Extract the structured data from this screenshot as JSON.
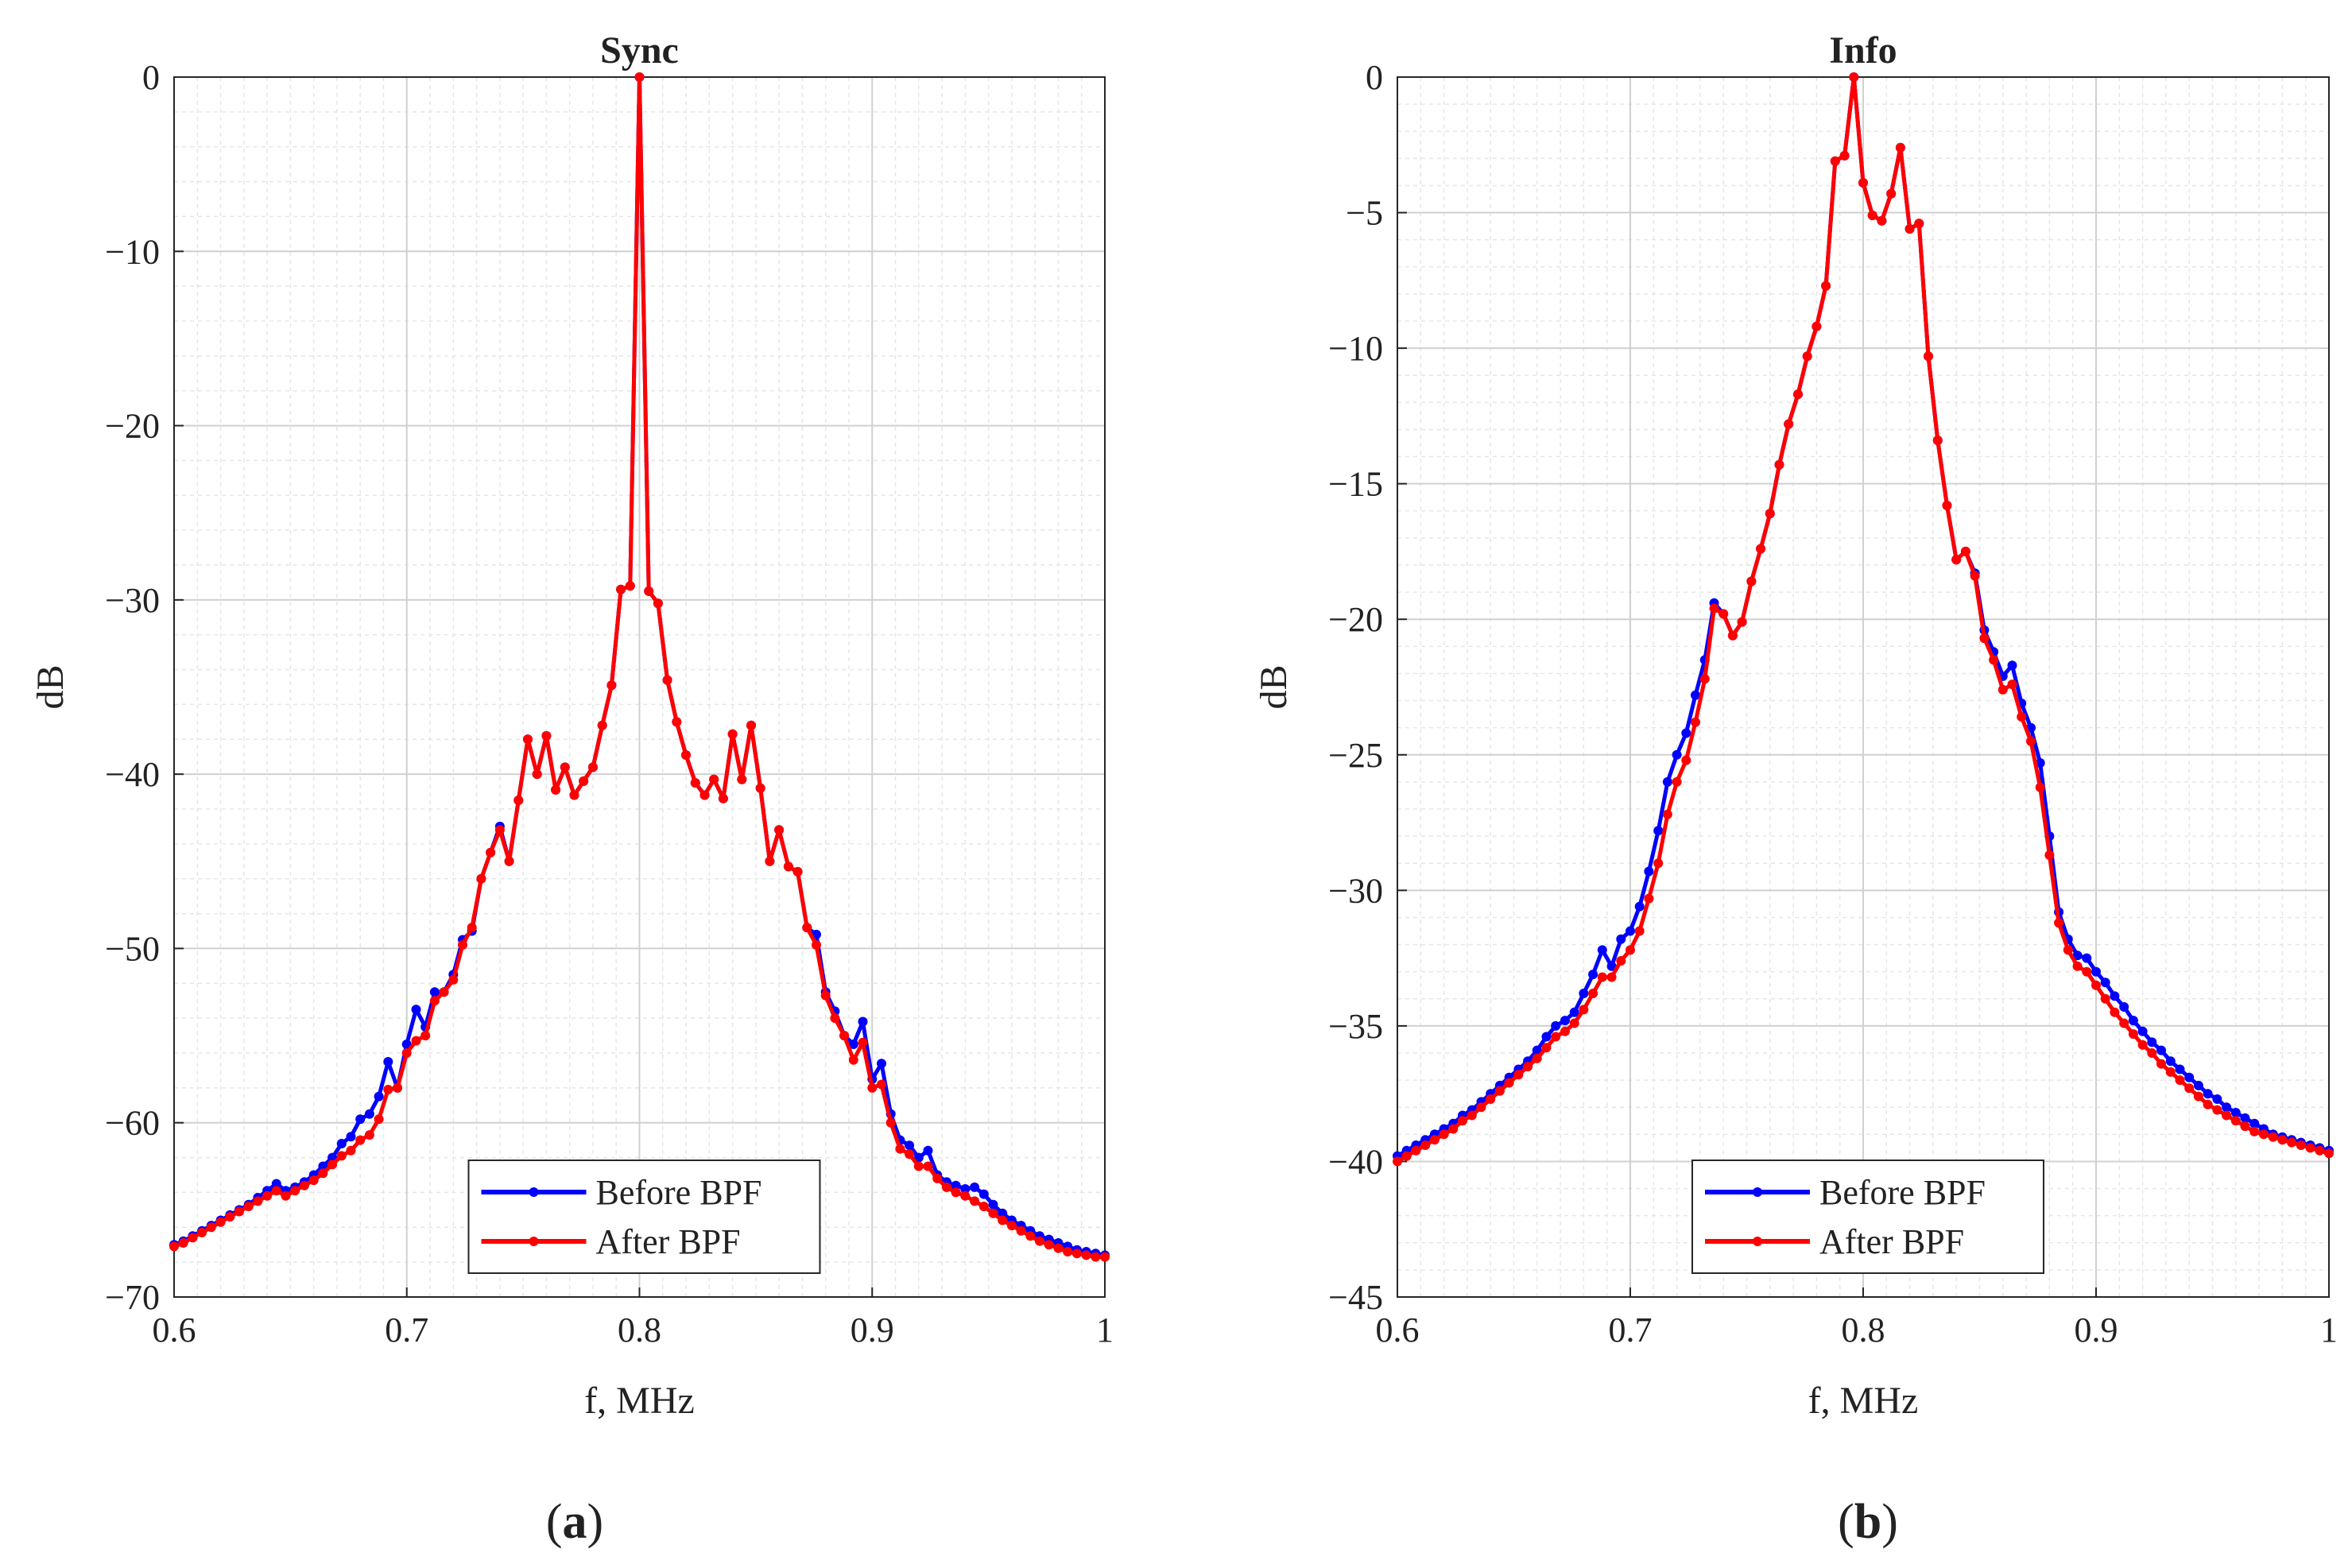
{
  "figure": {
    "panels": [
      {
        "label_open": "(",
        "label_letter": "a",
        "label_close": ")"
      },
      {
        "label_open": "(",
        "label_letter": "b",
        "label_close": ")"
      }
    ]
  },
  "chart_data": [
    {
      "type": "line",
      "title": "Sync",
      "xlabel": "f, MHz",
      "ylabel": "dB",
      "xlim": [
        0.6,
        1.0
      ],
      "ylim": [
        -70,
        0
      ],
      "xticks": [
        0.6,
        0.7,
        0.8,
        0.9,
        1.0
      ],
      "xtick_labels": [
        "0.6",
        "0.7",
        "0.8",
        "0.9",
        "1"
      ],
      "yticks": [
        0,
        -10,
        -20,
        -30,
        -40,
        -50,
        -60,
        -70
      ],
      "ytick_labels": [
        "0",
        "−10",
        "−20",
        "−30",
        "−40",
        "−50",
        "−60",
        "−70"
      ],
      "grid": true,
      "minor_grid": true,
      "legend_position": "bottom-center",
      "series": [
        {
          "name": "Before BPF",
          "color": "#0000ff",
          "x": [
            0.6,
            0.604,
            0.608,
            0.612,
            0.616,
            0.62,
            0.624,
            0.628,
            0.632,
            0.636,
            0.64,
            0.644,
            0.648,
            0.652,
            0.656,
            0.66,
            0.664,
            0.668,
            0.672,
            0.676,
            0.68,
            0.684,
            0.688,
            0.692,
            0.696,
            0.7,
            0.704,
            0.708,
            0.712,
            0.716,
            0.72,
            0.724,
            0.728,
            0.732,
            0.736,
            0.74,
            0.744,
            0.748,
            0.752,
            0.756,
            0.76,
            0.764,
            0.768,
            0.772,
            0.776,
            0.78,
            0.784,
            0.788,
            0.792,
            0.796,
            0.8,
            0.804,
            0.808,
            0.812,
            0.816,
            0.82,
            0.824,
            0.828,
            0.832,
            0.836,
            0.84,
            0.844,
            0.848,
            0.852,
            0.856,
            0.86,
            0.864,
            0.868,
            0.872,
            0.876,
            0.88,
            0.884,
            0.888,
            0.892,
            0.896,
            0.9,
            0.904,
            0.908,
            0.912,
            0.916,
            0.92,
            0.924,
            0.928,
            0.932,
            0.936,
            0.94,
            0.944,
            0.948,
            0.952,
            0.956,
            0.96,
            0.964,
            0.968,
            0.972,
            0.976,
            0.98,
            0.984,
            0.988,
            0.992,
            0.996,
            1.0
          ],
          "values": [
            -67.0,
            -66.8,
            -66.5,
            -66.2,
            -65.9,
            -65.6,
            -65.3,
            -65.0,
            -64.7,
            -64.3,
            -63.9,
            -63.5,
            -63.9,
            -63.7,
            -63.4,
            -63.0,
            -62.5,
            -62.0,
            -61.2,
            -60.8,
            -59.8,
            -59.5,
            -58.5,
            -56.5,
            -58.0,
            -55.5,
            -53.5,
            -54.5,
            -52.5,
            -52.5,
            -51.5,
            -49.5,
            -49.0,
            -46.0,
            -44.5,
            -43.0,
            -45.0,
            -41.5,
            -38.0,
            -40.0,
            -37.8,
            -40.9,
            -39.6,
            -41.2,
            -40.4,
            -39.6,
            -37.2,
            -34.9,
            -29.4,
            -29.2,
            0.0,
            -29.5,
            -30.2,
            -34.6,
            -37.0,
            -38.9,
            -40.5,
            -41.2,
            -40.3,
            -41.4,
            -37.7,
            -40.3,
            -37.2,
            -40.8,
            -45.0,
            -43.2,
            -45.3,
            -45.6,
            -48.8,
            -49.2,
            -52.5,
            -53.6,
            -55.0,
            -55.5,
            -54.2,
            -57.5,
            -56.6,
            -59.5,
            -61.0,
            -61.3,
            -62.0,
            -61.6,
            -63.0,
            -63.4,
            -63.6,
            -63.8,
            -63.7,
            -64.1,
            -64.7,
            -65.2,
            -65.6,
            -65.9,
            -66.2,
            -66.5,
            -66.7,
            -66.9,
            -67.1,
            -67.3,
            -67.4,
            -67.5,
            -67.6
          ]
        },
        {
          "name": "After BPF",
          "color": "#ff0000",
          "x": [
            0.6,
            0.604,
            0.608,
            0.612,
            0.616,
            0.62,
            0.624,
            0.628,
            0.632,
            0.636,
            0.64,
            0.644,
            0.648,
            0.652,
            0.656,
            0.66,
            0.664,
            0.668,
            0.672,
            0.676,
            0.68,
            0.684,
            0.688,
            0.692,
            0.696,
            0.7,
            0.704,
            0.708,
            0.712,
            0.716,
            0.72,
            0.724,
            0.728,
            0.732,
            0.736,
            0.74,
            0.744,
            0.748,
            0.752,
            0.756,
            0.76,
            0.764,
            0.768,
            0.772,
            0.776,
            0.78,
            0.784,
            0.788,
            0.792,
            0.796,
            0.8,
            0.804,
            0.808,
            0.812,
            0.816,
            0.82,
            0.824,
            0.828,
            0.832,
            0.836,
            0.84,
            0.844,
            0.848,
            0.852,
            0.856,
            0.86,
            0.864,
            0.868,
            0.872,
            0.876,
            0.88,
            0.884,
            0.888,
            0.892,
            0.896,
            0.9,
            0.904,
            0.908,
            0.912,
            0.916,
            0.92,
            0.924,
            0.928,
            0.932,
            0.936,
            0.94,
            0.944,
            0.948,
            0.952,
            0.956,
            0.96,
            0.964,
            0.968,
            0.972,
            0.976,
            0.98,
            0.984,
            0.988,
            0.992,
            0.996,
            1.0
          ],
          "values": [
            -67.1,
            -66.9,
            -66.6,
            -66.3,
            -66.0,
            -65.7,
            -65.4,
            -65.1,
            -64.8,
            -64.5,
            -64.2,
            -63.9,
            -64.2,
            -63.9,
            -63.6,
            -63.3,
            -62.9,
            -62.4,
            -61.9,
            -61.6,
            -61.0,
            -60.7,
            -59.8,
            -58.1,
            -58.0,
            -56.0,
            -55.3,
            -55.0,
            -53.0,
            -52.5,
            -51.8,
            -49.8,
            -48.8,
            -46.0,
            -44.5,
            -43.2,
            -45.0,
            -41.5,
            -38.0,
            -40.0,
            -37.8,
            -40.9,
            -39.6,
            -41.2,
            -40.4,
            -39.6,
            -37.2,
            -34.9,
            -29.4,
            -29.2,
            0.0,
            -29.5,
            -30.2,
            -34.6,
            -37.0,
            -38.9,
            -40.5,
            -41.2,
            -40.3,
            -41.4,
            -37.7,
            -40.3,
            -37.2,
            -40.8,
            -45.0,
            -43.2,
            -45.3,
            -45.6,
            -48.8,
            -49.8,
            -52.7,
            -54.0,
            -55.0,
            -56.4,
            -55.4,
            -58.0,
            -57.8,
            -60.0,
            -61.5,
            -61.8,
            -62.5,
            -62.5,
            -63.2,
            -63.7,
            -64.0,
            -64.2,
            -64.5,
            -64.8,
            -65.2,
            -65.6,
            -65.9,
            -66.2,
            -66.5,
            -66.8,
            -67.0,
            -67.2,
            -67.4,
            -67.5,
            -67.6,
            -67.7,
            -67.7
          ]
        }
      ]
    },
    {
      "type": "line",
      "title": "Info",
      "xlabel": "f, MHz",
      "ylabel": "dB",
      "xlim": [
        0.6,
        1.0
      ],
      "ylim": [
        -45,
        0
      ],
      "xticks": [
        0.6,
        0.7,
        0.8,
        0.9,
        1.0
      ],
      "xtick_labels": [
        "0.6",
        "0.7",
        "0.8",
        "0.9",
        "1"
      ],
      "yticks": [
        0,
        -5,
        -10,
        -15,
        -20,
        -25,
        -30,
        -35,
        -40,
        -45
      ],
      "ytick_labels": [
        "0",
        "−5",
        "−10",
        "−15",
        "−20",
        "−25",
        "−30",
        "−35",
        "−40",
        "−45"
      ],
      "grid": true,
      "minor_grid": true,
      "legend_position": "bottom-center",
      "series": [
        {
          "name": "Before BPF",
          "color": "#0000ff",
          "x": [
            0.6,
            0.604,
            0.608,
            0.612,
            0.616,
            0.62,
            0.624,
            0.628,
            0.632,
            0.636,
            0.64,
            0.644,
            0.648,
            0.652,
            0.656,
            0.66,
            0.664,
            0.668,
            0.672,
            0.676,
            0.68,
            0.684,
            0.688,
            0.692,
            0.696,
            0.7,
            0.704,
            0.708,
            0.712,
            0.716,
            0.72,
            0.724,
            0.728,
            0.732,
            0.736,
            0.74,
            0.744,
            0.748,
            0.752,
            0.756,
            0.76,
            0.764,
            0.768,
            0.772,
            0.776,
            0.78,
            0.784,
            0.788,
            0.792,
            0.796,
            0.8,
            0.804,
            0.808,
            0.812,
            0.816,
            0.82,
            0.824,
            0.828,
            0.832,
            0.836,
            0.84,
            0.844,
            0.848,
            0.852,
            0.856,
            0.86,
            0.864,
            0.868,
            0.872,
            0.876,
            0.88,
            0.884,
            0.888,
            0.892,
            0.896,
            0.9,
            0.904,
            0.908,
            0.912,
            0.916,
            0.92,
            0.924,
            0.928,
            0.932,
            0.936,
            0.94,
            0.944,
            0.948,
            0.952,
            0.956,
            0.96,
            0.964,
            0.968,
            0.972,
            0.976,
            0.98,
            0.984,
            0.988,
            0.992,
            0.996,
            1.0
          ],
          "values": [
            -39.8,
            -39.6,
            -39.4,
            -39.2,
            -39.0,
            -38.8,
            -38.6,
            -38.3,
            -38.1,
            -37.8,
            -37.5,
            -37.2,
            -36.9,
            -36.6,
            -36.3,
            -35.9,
            -35.4,
            -35.0,
            -34.8,
            -34.5,
            -33.8,
            -33.1,
            -32.2,
            -32.8,
            -31.8,
            -31.5,
            -30.6,
            -29.3,
            -27.8,
            -26.0,
            -25.0,
            -24.2,
            -22.8,
            -21.5,
            -19.4,
            -19.8,
            -20.6,
            -20.1,
            -18.6,
            -17.4,
            -16.1,
            -14.3,
            -12.8,
            -11.7,
            -10.3,
            -9.2,
            -7.7,
            -3.1,
            -2.9,
            0.0,
            -3.9,
            -5.1,
            -5.3,
            -4.3,
            -2.6,
            -5.6,
            -5.4,
            -10.3,
            -13.4,
            -15.8,
            -17.8,
            -17.5,
            -18.3,
            -20.4,
            -21.2,
            -22.1,
            -21.7,
            -23.1,
            -24.0,
            -25.3,
            -28.0,
            -30.8,
            -31.8,
            -32.4,
            -32.5,
            -33.0,
            -33.4,
            -33.9,
            -34.3,
            -34.8,
            -35.2,
            -35.6,
            -35.9,
            -36.3,
            -36.6,
            -36.9,
            -37.2,
            -37.5,
            -37.7,
            -38.0,
            -38.2,
            -38.4,
            -38.6,
            -38.8,
            -39.0,
            -39.1,
            -39.2,
            -39.3,
            -39.4,
            -39.5,
            -39.6
          ]
        },
        {
          "name": "After BPF",
          "color": "#ff0000",
          "x": [
            0.6,
            0.604,
            0.608,
            0.612,
            0.616,
            0.62,
            0.624,
            0.628,
            0.632,
            0.636,
            0.64,
            0.644,
            0.648,
            0.652,
            0.656,
            0.66,
            0.664,
            0.668,
            0.672,
            0.676,
            0.68,
            0.684,
            0.688,
            0.692,
            0.696,
            0.7,
            0.704,
            0.708,
            0.712,
            0.716,
            0.72,
            0.724,
            0.728,
            0.732,
            0.736,
            0.74,
            0.744,
            0.748,
            0.752,
            0.756,
            0.76,
            0.764,
            0.768,
            0.772,
            0.776,
            0.78,
            0.784,
            0.788,
            0.792,
            0.796,
            0.8,
            0.804,
            0.808,
            0.812,
            0.816,
            0.82,
            0.824,
            0.828,
            0.832,
            0.836,
            0.84,
            0.844,
            0.848,
            0.852,
            0.856,
            0.86,
            0.864,
            0.868,
            0.872,
            0.876,
            0.88,
            0.884,
            0.888,
            0.892,
            0.896,
            0.9,
            0.904,
            0.908,
            0.912,
            0.916,
            0.92,
            0.924,
            0.928,
            0.932,
            0.936,
            0.94,
            0.944,
            0.948,
            0.952,
            0.956,
            0.96,
            0.964,
            0.968,
            0.972,
            0.976,
            0.98,
            0.984,
            0.988,
            0.992,
            0.996,
            1.0
          ],
          "values": [
            -40.0,
            -39.8,
            -39.6,
            -39.4,
            -39.2,
            -39.0,
            -38.8,
            -38.5,
            -38.3,
            -38.0,
            -37.7,
            -37.4,
            -37.1,
            -36.8,
            -36.5,
            -36.2,
            -35.8,
            -35.4,
            -35.2,
            -34.9,
            -34.4,
            -33.8,
            -33.2,
            -33.2,
            -32.6,
            -32.2,
            -31.5,
            -30.3,
            -29.0,
            -27.2,
            -26.0,
            -25.2,
            -23.8,
            -22.2,
            -19.6,
            -19.8,
            -20.6,
            -20.1,
            -18.6,
            -17.4,
            -16.1,
            -14.3,
            -12.8,
            -11.7,
            -10.3,
            -9.2,
            -7.7,
            -3.1,
            -2.9,
            0.0,
            -3.9,
            -5.1,
            -5.3,
            -4.3,
            -2.6,
            -5.6,
            -5.4,
            -10.3,
            -13.4,
            -15.8,
            -17.8,
            -17.5,
            -18.4,
            -20.7,
            -21.5,
            -22.6,
            -22.4,
            -23.6,
            -24.5,
            -26.2,
            -28.7,
            -31.2,
            -32.2,
            -32.8,
            -33.0,
            -33.5,
            -34.0,
            -34.5,
            -34.9,
            -35.3,
            -35.7,
            -36.0,
            -36.4,
            -36.7,
            -37.0,
            -37.3,
            -37.6,
            -37.9,
            -38.1,
            -38.3,
            -38.5,
            -38.7,
            -38.9,
            -39.0,
            -39.1,
            -39.2,
            -39.3,
            -39.4,
            -39.5,
            -39.6,
            -39.7
          ]
        }
      ]
    }
  ]
}
